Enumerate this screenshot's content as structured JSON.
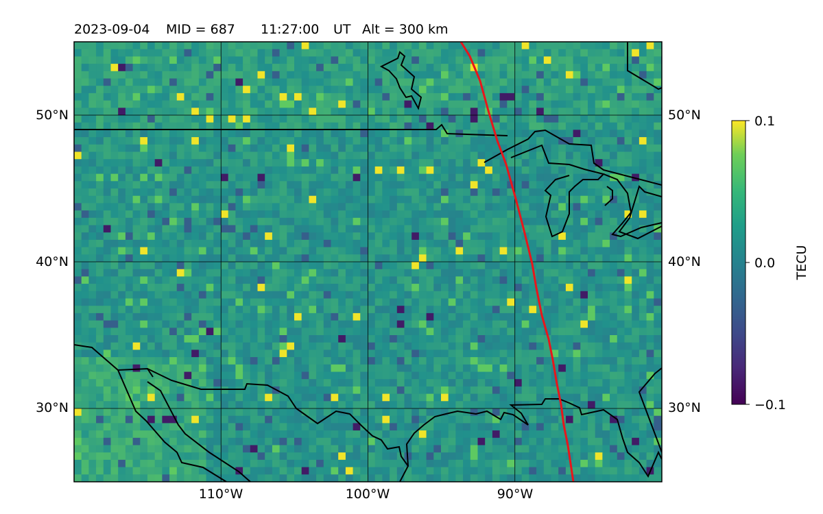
{
  "header": {
    "date": "2023-09-04",
    "mid": "MID = 687",
    "time": "11:27:00",
    "ut": "UT",
    "alt": "Alt = 300 km"
  },
  "map": {
    "lon_range": [
      -120,
      -80
    ],
    "lat_range": [
      25,
      55
    ],
    "lat_ticks": [
      {
        "value": 50,
        "label": "50°N"
      },
      {
        "value": 40,
        "label": "40°N"
      },
      {
        "value": 30,
        "label": "30°N"
      }
    ],
    "lon_ticks": [
      {
        "value": -110,
        "label": "110°W"
      },
      {
        "value": -100,
        "label": "100°W"
      },
      {
        "value": -90,
        "label": "90°W"
      }
    ],
    "track_color": "#e8161b",
    "coast_color": "#000000",
    "gridlines": true
  },
  "colorbar": {
    "label": "TECU",
    "colormap": "viridis",
    "min": -0.1,
    "max": 0.1,
    "ticks": [
      {
        "value": 0.1,
        "label": "0.1"
      },
      {
        "value": 0.0,
        "label": "0.0"
      },
      {
        "value": -0.1,
        "label": "−0.1"
      }
    ]
  }
}
